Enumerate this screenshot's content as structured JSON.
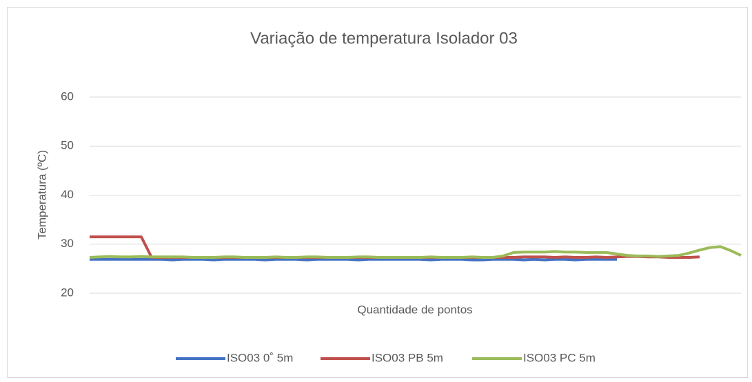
{
  "chart_data": {
    "type": "line",
    "title": "Variação de temperatura Isolador 03",
    "y_label": "Temperatura (ºC)",
    "x_label": "Quantidade de pontos",
    "categories": [
      null,
      null,
      null,
      null,
      null,
      null,
      null,
      null,
      null,
      null,
      null,
      null,
      null,
      null,
      null,
      null,
      null,
      null,
      null,
      null,
      null,
      null,
      null,
      null,
      null,
      null,
      null,
      null,
      null,
      null,
      null,
      null,
      null,
      null,
      null,
      null,
      null,
      null,
      null,
      null,
      null,
      null,
      null,
      null,
      null,
      null,
      null,
      null,
      null,
      null,
      null,
      null,
      null,
      null,
      null,
      null,
      null,
      null,
      null,
      null,
      null,
      null,
      null,
      null
    ],
    "series": [
      {
        "name": "ISO03 0˚ 5m",
        "color": "#4472c4",
        "values": [
          26.9,
          26.9,
          26.9,
          26.9,
          26.9,
          26.9,
          26.9,
          26.9,
          26.8,
          26.9,
          26.9,
          26.9,
          26.8,
          26.9,
          26.9,
          26.9,
          26.9,
          26.8,
          26.9,
          26.9,
          26.9,
          26.8,
          26.9,
          26.9,
          26.9,
          26.9,
          26.8,
          26.9,
          26.9,
          26.9,
          26.9,
          26.9,
          26.9,
          26.8,
          26.9,
          26.9,
          26.9,
          26.8,
          26.8,
          26.9,
          26.9,
          26.9,
          26.8,
          26.9,
          26.8,
          26.9,
          26.9,
          26.8,
          26.9,
          26.9,
          26.9,
          26.9,
          null,
          null,
          null,
          null,
          null,
          null,
          null,
          null,
          null,
          null,
          null,
          null
        ]
      },
      {
        "name": "ISO03 PB 5m",
        "color": "#c0504d",
        "values": [
          31.5,
          31.5,
          31.5,
          31.5,
          31.5,
          31.5,
          27.3,
          27.3,
          27.3,
          27.3,
          27.3,
          27.3,
          27.3,
          27.3,
          27.3,
          27.3,
          27.3,
          27.3,
          27.3,
          27.3,
          27.3,
          27.3,
          27.3,
          27.3,
          27.3,
          27.3,
          27.3,
          27.3,
          27.3,
          27.3,
          27.3,
          27.3,
          27.3,
          27.3,
          27.3,
          27.3,
          27.3,
          27.3,
          27.3,
          27.3,
          27.3,
          27.3,
          27.4,
          27.4,
          27.4,
          27.3,
          27.4,
          27.3,
          27.3,
          27.4,
          27.3,
          27.4,
          27.5,
          27.5,
          27.4,
          27.4,
          27.3,
          27.3,
          27.3,
          27.4,
          null,
          null,
          null,
          null
        ]
      },
      {
        "name": "ISO03 PC 5m",
        "color": "#9bbb59",
        "values": [
          27.3,
          27.4,
          27.5,
          27.4,
          27.4,
          27.5,
          27.4,
          27.4,
          27.4,
          27.4,
          27.3,
          27.3,
          27.3,
          27.4,
          27.4,
          27.3,
          27.3,
          27.3,
          27.4,
          27.3,
          27.3,
          27.4,
          27.4,
          27.3,
          27.3,
          27.3,
          27.4,
          27.4,
          27.3,
          27.3,
          27.3,
          27.3,
          27.3,
          27.4,
          27.3,
          27.3,
          27.3,
          27.4,
          27.3,
          27.3,
          27.6,
          28.3,
          28.4,
          28.4,
          28.4,
          28.5,
          28.4,
          28.4,
          28.3,
          28.3,
          28.3,
          28.0,
          27.7,
          27.6,
          27.6,
          27.5,
          27.6,
          27.7,
          28.2,
          28.8,
          29.3,
          29.5,
          28.7,
          27.7
        ]
      }
    ],
    "ylim": [
      20,
      60
    ],
    "yticks": [
      20,
      30,
      40,
      50,
      60
    ],
    "grid": true,
    "legend": "bottom"
  }
}
